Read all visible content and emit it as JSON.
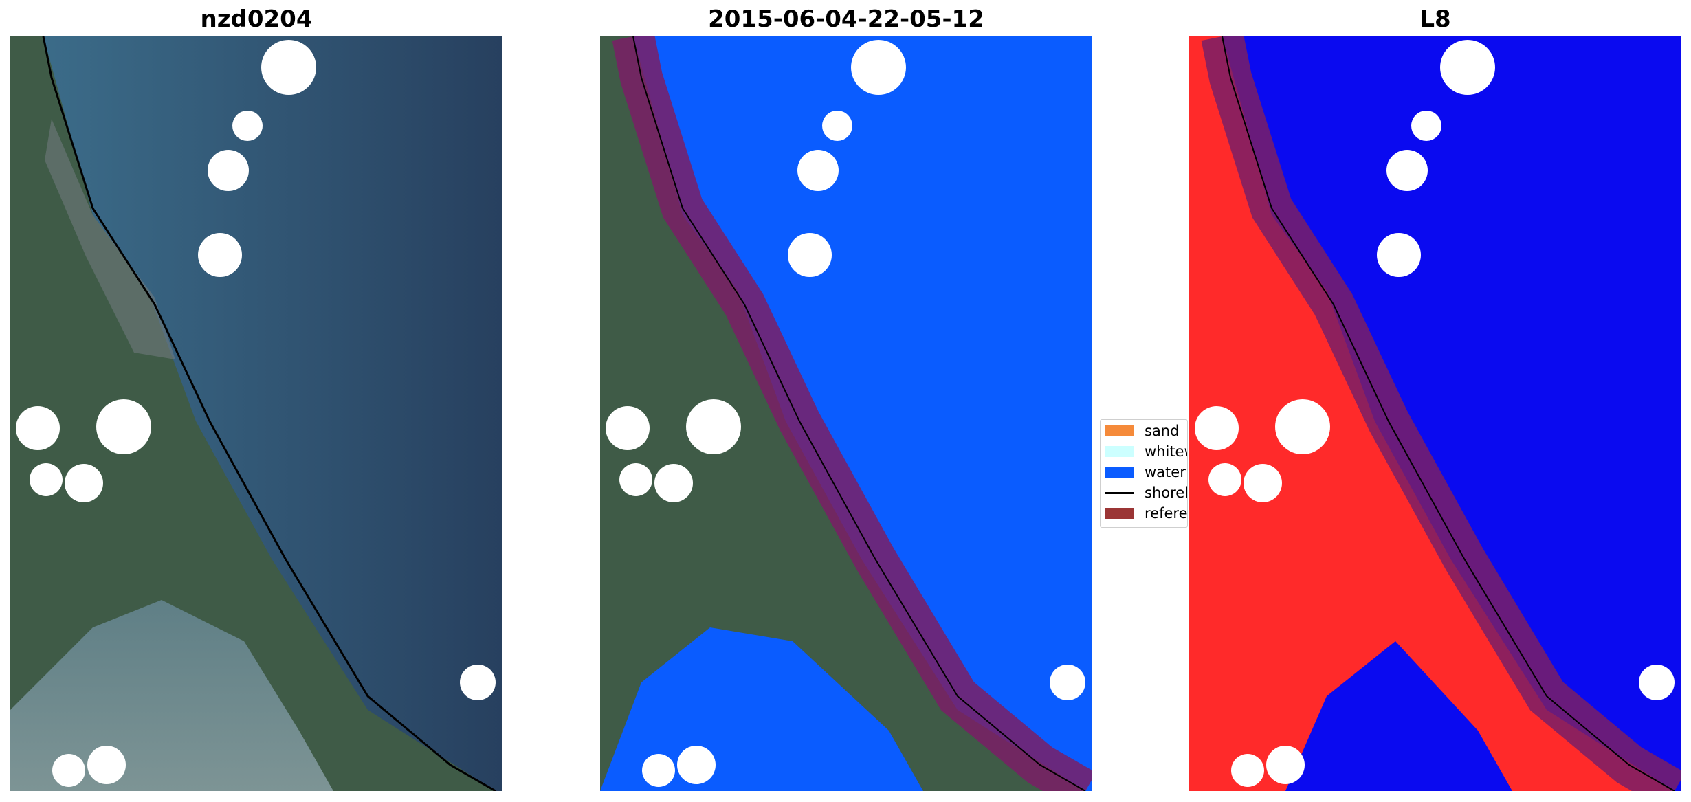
{
  "panels": [
    {
      "title": "nzd0204"
    },
    {
      "title": "2015-06-04-22-05-12"
    },
    {
      "title": "L8"
    }
  ],
  "legend": {
    "items": [
      {
        "label": "sand",
        "color": "#f58a3a",
        "kind": "patch"
      },
      {
        "label": "whitewater",
        "color": "#ccffff",
        "kind": "patch"
      },
      {
        "label": "water",
        "color": "#0a5cff",
        "kind": "patch"
      },
      {
        "label": "shoreline",
        "color": "#000000",
        "kind": "line"
      },
      {
        "label": "reference",
        "color": "#9b3535",
        "kind": "patch"
      }
    ]
  },
  "colors": {
    "rgb_sea": "#2f4f72",
    "rgb_land": "#3d5a44",
    "water_class": "#0a5cff",
    "index_water": "#0a0af0",
    "index_land": "#ff2a2a",
    "reference_buffer": "#7a1f66",
    "cloud_mask": "#ffffff"
  }
}
